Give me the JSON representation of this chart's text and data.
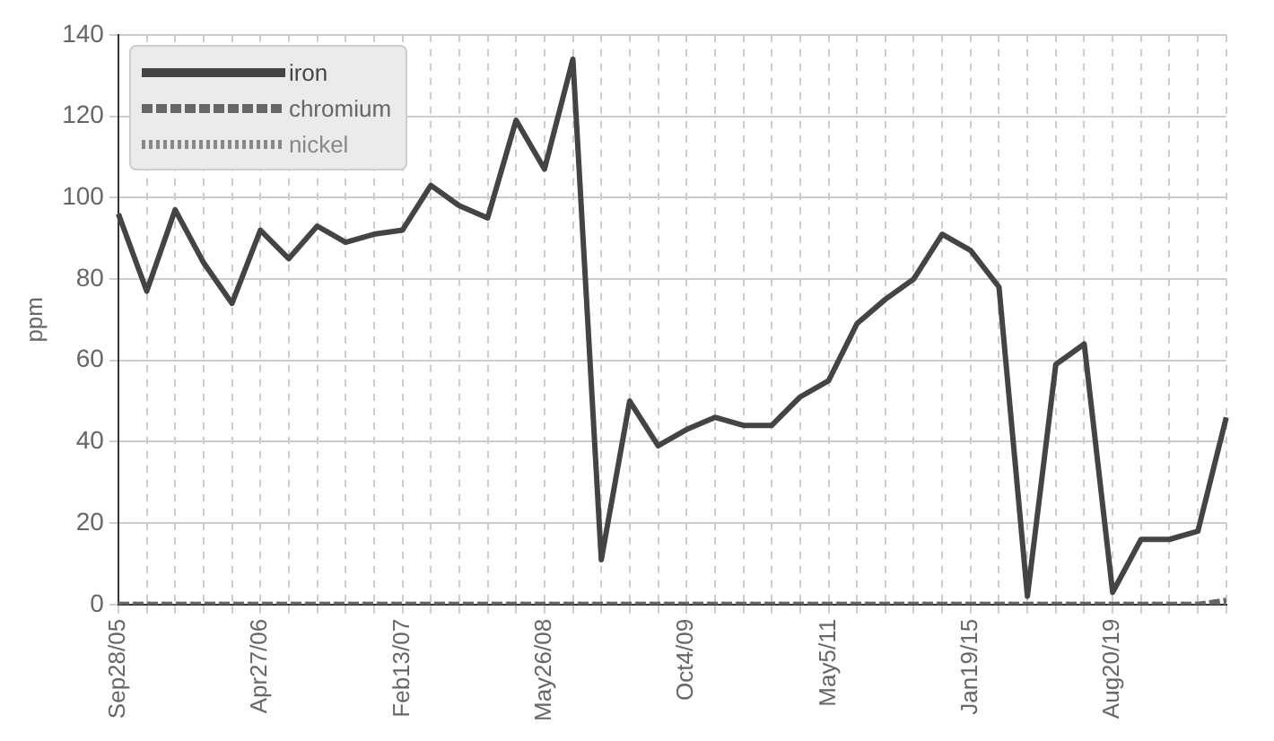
{
  "chart_data": {
    "type": "line",
    "ylabel": "ppm",
    "categories": [
      "Sep28/05",
      null,
      null,
      null,
      null,
      "Apr27/06",
      null,
      null,
      null,
      null,
      "Feb13/07",
      null,
      null,
      null,
      null,
      "May26/08",
      null,
      null,
      null,
      null,
      "Oct4/09",
      null,
      null,
      null,
      null,
      "May5/11",
      null,
      null,
      null,
      null,
      "Jan19/15",
      null,
      null,
      null,
      null,
      "Aug20/19",
      null,
      null,
      null,
      null
    ],
    "series": [
      {
        "name": "iron",
        "color": "#444444",
        "line_style": "solid",
        "values": [
          96,
          77,
          97,
          84,
          74,
          92,
          85,
          93,
          89,
          91,
          92,
          103,
          98,
          95,
          119,
          107,
          134,
          11,
          50,
          39,
          43,
          46,
          44,
          44,
          51,
          55,
          69,
          75,
          80,
          91,
          87,
          78,
          2,
          59,
          64,
          3,
          16,
          16,
          18,
          46
        ]
      },
      {
        "name": "chromium",
        "color": "#666666",
        "line_style": "dashed",
        "values": [
          0,
          0,
          0,
          0,
          0,
          0,
          0,
          0,
          0,
          0,
          0,
          0,
          0,
          0,
          0,
          0,
          0,
          0,
          0,
          0,
          0,
          0,
          0,
          0,
          0,
          0,
          0,
          0,
          0,
          0,
          0,
          0,
          0,
          0,
          0,
          0,
          0,
          0,
          0,
          1
        ]
      },
      {
        "name": "nickel",
        "color": "#888888",
        "line_style": "dotted",
        "values": [
          0,
          0,
          0,
          0,
          0,
          0,
          0,
          0,
          0,
          0,
          0,
          0,
          0,
          0,
          0,
          0,
          0,
          0,
          0,
          0,
          0,
          0,
          0,
          0,
          0,
          0,
          0,
          0,
          0,
          0,
          0,
          0,
          0,
          0,
          0,
          0,
          0,
          0,
          0,
          0
        ]
      }
    ],
    "ylim": [
      0,
      140
    ],
    "yticks": [
      0,
      20,
      40,
      60,
      80,
      100,
      120,
      140
    ],
    "grid": true,
    "legend": "top left",
    "marker": "none"
  }
}
